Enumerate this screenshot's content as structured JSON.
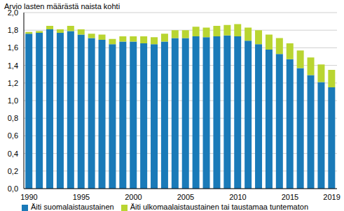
{
  "chart_data": {
    "type": "bar",
    "y_label": "Arvio lasten määrästä naista kohti",
    "categories": [
      "1990",
      null,
      null,
      null,
      null,
      "1995",
      null,
      null,
      null,
      null,
      "2000",
      null,
      null,
      null,
      null,
      "2005",
      null,
      null,
      null,
      null,
      "2010",
      null,
      null,
      null,
      null,
      "2015",
      null,
      null,
      null,
      "2019"
    ],
    "series": [
      {
        "name": "Äiti suomalaistaustainen",
        "color": "#1a7ab8",
        "values": [
          1.76,
          1.77,
          1.81,
          1.77,
          1.79,
          1.75,
          1.71,
          1.69,
          1.64,
          1.67,
          1.67,
          1.65,
          1.64,
          1.67,
          1.71,
          1.71,
          1.73,
          1.72,
          1.73,
          1.74,
          1.73,
          1.68,
          1.64,
          1.58,
          1.53,
          1.47,
          1.37,
          1.29,
          1.21,
          1.15
        ]
      },
      {
        "name": "Äiti ulkomaalaistaustainen tai taustamaa tuntematon",
        "color": "#b9d531",
        "values": [
          0.02,
          0.02,
          0.04,
          0.04,
          0.06,
          0.06,
          0.05,
          0.06,
          0.06,
          0.06,
          0.06,
          0.08,
          0.08,
          0.09,
          0.09,
          0.09,
          0.11,
          0.11,
          0.12,
          0.12,
          0.14,
          0.15,
          0.16,
          0.17,
          0.18,
          0.18,
          0.2,
          0.2,
          0.2,
          0.2
        ]
      }
    ],
    "stacked": true,
    "grid": true,
    "legend": "bottom",
    "ylim": [
      0,
      2.0
    ],
    "yticks": [
      {
        "value": 0,
        "label": "0,0"
      },
      {
        "value": 0.2,
        "label": "0,2"
      },
      {
        "value": 0.4,
        "label": "0,4"
      },
      {
        "value": 0.6,
        "label": "0,6"
      },
      {
        "value": 0.8,
        "label": "0,8"
      },
      {
        "value": 1.0,
        "label": "1,0"
      },
      {
        "value": 1.2,
        "label": "1,2"
      },
      {
        "value": 1.4,
        "label": "1,4"
      },
      {
        "value": 1.6,
        "label": "1,6"
      },
      {
        "value": 1.8,
        "label": "1,8"
      },
      {
        "value": 2.0,
        "label": "2,0"
      }
    ]
  }
}
